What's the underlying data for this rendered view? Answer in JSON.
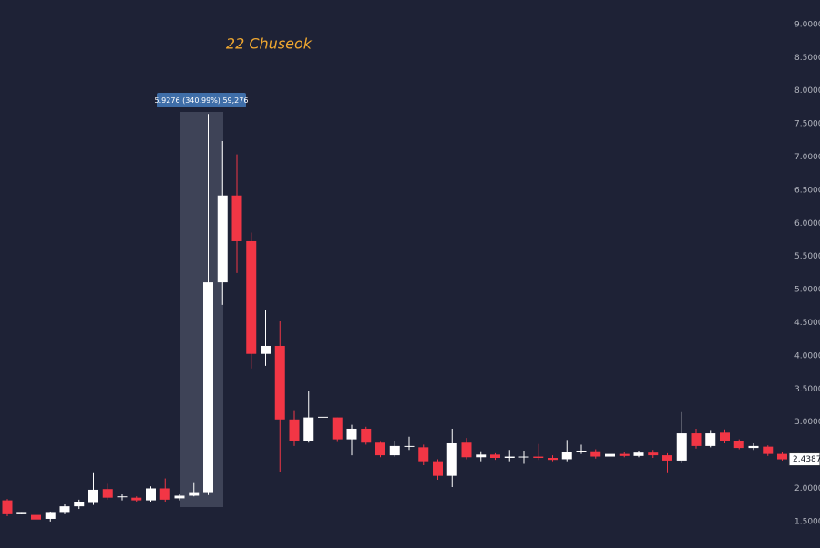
{
  "chart_data": {
    "type": "candlestick",
    "annotation": "22 Chuseok",
    "measure_label": "5.9276 (340.99%) 59,276",
    "categories": [
      null,
      null,
      null,
      null,
      null,
      null,
      null,
      null,
      null,
      null,
      null,
      null,
      null,
      null,
      null,
      null,
      null,
      null,
      null,
      null,
      null,
      null,
      null,
      null,
      null,
      null,
      null,
      null,
      null,
      null,
      null,
      null,
      null,
      null,
      null,
      null,
      null,
      null,
      null,
      null,
      null,
      null,
      null,
      null,
      null,
      null,
      null,
      null,
      null,
      null,
      null,
      null,
      null,
      null,
      null
    ],
    "open": [
      1.82,
      1.61,
      1.6,
      1.54,
      1.63,
      1.73,
      1.78,
      1.99,
      1.87,
      1.86,
      1.82,
      2.0,
      1.85,
      1.89,
      1.93,
      5.11,
      6.42,
      5.73,
      4.03,
      4.15,
      3.04,
      2.71,
      3.07,
      3.07,
      2.74,
      2.9,
      2.69,
      2.5,
      2.64,
      2.62,
      2.41,
      2.19,
      2.69,
      2.47,
      2.51,
      2.46,
      2.47,
      2.48,
      2.46,
      2.44,
      2.55,
      2.56,
      2.48,
      2.52,
      2.49,
      2.54,
      2.5,
      2.42,
      2.83,
      2.64,
      2.84,
      2.72,
      2.61,
      2.63,
      2.52
    ],
    "high": [
      1.84,
      1.63,
      1.61,
      1.65,
      1.76,
      1.83,
      2.23,
      2.07,
      1.91,
      1.88,
      2.03,
      2.15,
      1.91,
      2.08,
      7.65,
      7.24,
      7.04,
      5.86,
      4.7,
      4.52,
      3.18,
      3.47,
      3.2,
      3.07,
      2.96,
      2.93,
      2.7,
      2.72,
      2.78,
      2.66,
      2.44,
      2.9,
      2.76,
      2.56,
      2.53,
      2.58,
      2.57,
      2.67,
      2.5,
      2.73,
      2.66,
      2.59,
      2.56,
      2.55,
      2.57,
      2.58,
      2.53,
      3.15,
      2.9,
      2.88,
      2.89,
      2.74,
      2.68,
      2.65,
      2.55
    ],
    "low": [
      1.58,
      1.61,
      1.51,
      1.5,
      1.61,
      1.69,
      1.75,
      1.83,
      1.82,
      1.8,
      1.79,
      1.8,
      1.82,
      1.88,
      1.9,
      4.77,
      5.25,
      3.81,
      3.85,
      2.25,
      2.64,
      2.69,
      2.93,
      2.7,
      2.5,
      2.66,
      2.47,
      2.48,
      2.58,
      2.35,
      2.13,
      2.02,
      2.44,
      2.41,
      2.43,
      2.41,
      2.37,
      2.43,
      2.41,
      2.41,
      2.52,
      2.45,
      2.45,
      2.47,
      2.47,
      2.46,
      2.23,
      2.38,
      2.6,
      2.62,
      2.68,
      2.59,
      2.58,
      2.49,
      2.42
    ],
    "close": [
      1.61,
      1.63,
      1.53,
      1.63,
      1.73,
      1.8,
      1.98,
      1.86,
      1.88,
      1.82,
      2.0,
      1.83,
      1.89,
      1.93,
      5.11,
      6.42,
      5.73,
      4.03,
      4.15,
      3.04,
      2.71,
      3.07,
      3.08,
      2.74,
      2.9,
      2.69,
      2.5,
      2.64,
      2.64,
      2.41,
      2.19,
      2.68,
      2.47,
      2.51,
      2.46,
      2.48,
      2.48,
      2.46,
      2.43,
      2.55,
      2.57,
      2.48,
      2.52,
      2.49,
      2.54,
      2.5,
      2.42,
      2.83,
      2.64,
      2.83,
      2.71,
      2.61,
      2.64,
      2.52,
      2.4387
    ],
    "up_color": "#ffffff",
    "down_color": "#f23645",
    "ylim": [
      1.1,
      9.37
    ],
    "yticks": [
      {
        "value": 1.5,
        "label": "1.5000"
      },
      {
        "value": 2,
        "label": "2.0000"
      },
      {
        "value": 2.5,
        "label": "2.5000"
      },
      {
        "value": 3,
        "label": "3.0000"
      },
      {
        "value": 3.5,
        "label": "3.5000"
      },
      {
        "value": 4,
        "label": "4.0000"
      },
      {
        "value": 4.5,
        "label": "4.5000"
      },
      {
        "value": 5,
        "label": "5.0000"
      },
      {
        "value": 5.5,
        "label": "5.5000"
      },
      {
        "value": 6,
        "label": "6.0000"
      },
      {
        "value": 6.5,
        "label": "6.5000"
      },
      {
        "value": 7,
        "label": "7.0000"
      },
      {
        "value": 7.5,
        "label": "7.5000"
      },
      {
        "value": 8,
        "label": "8.0000"
      },
      {
        "value": 8.5,
        "label": "8.5000"
      },
      {
        "value": 9,
        "label": "9.0000"
      }
    ],
    "last_price": {
      "value": 2.4387,
      "label": "2.4387"
    }
  }
}
